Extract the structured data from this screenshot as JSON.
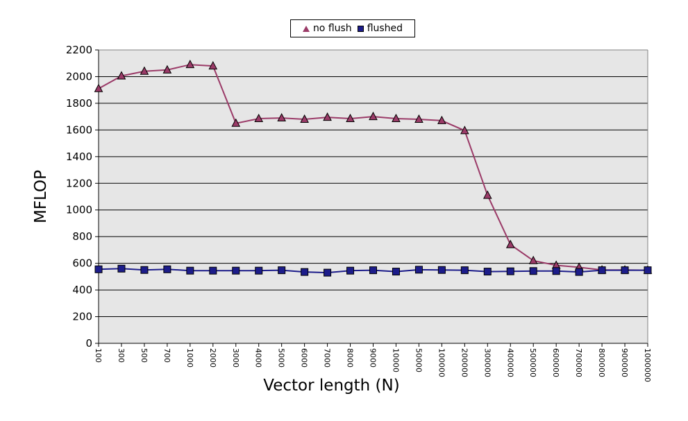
{
  "chart_data": {
    "type": "line",
    "xlabel": "Vector length (N)",
    "ylabel": "MFLOP",
    "ylim": [
      0,
      2200
    ],
    "yticks": [
      0,
      200,
      400,
      600,
      800,
      1000,
      1200,
      1400,
      1600,
      1800,
      2000,
      2200
    ],
    "grid": "horizontal",
    "legend_position": "top",
    "categories": [
      "100",
      "300",
      "500",
      "700",
      "1000",
      "2000",
      "3000",
      "4000",
      "5000",
      "6000",
      "7000",
      "8000",
      "9000",
      "10000",
      "50000",
      "100000",
      "200000",
      "300000",
      "400000",
      "500000",
      "600000",
      "700000",
      "800000",
      "900000",
      "1000000"
    ],
    "series": [
      {
        "name": "no flush",
        "color": "#9b3b68",
        "marker": "triangle",
        "values": [
          1910,
          2005,
          2040,
          2050,
          2090,
          2080,
          1650,
          1685,
          1690,
          1680,
          1695,
          1685,
          1700,
          1685,
          1680,
          1670,
          1595,
          1110,
          740,
          620,
          585,
          570,
          550,
          550,
          548
        ]
      },
      {
        "name": "flushed",
        "color": "#1c1c8a",
        "marker": "square",
        "values": [
          555,
          560,
          550,
          555,
          545,
          545,
          545,
          545,
          548,
          535,
          530,
          545,
          548,
          538,
          552,
          550,
          548,
          538,
          540,
          542,
          542,
          535,
          548,
          548,
          548
        ]
      }
    ]
  }
}
